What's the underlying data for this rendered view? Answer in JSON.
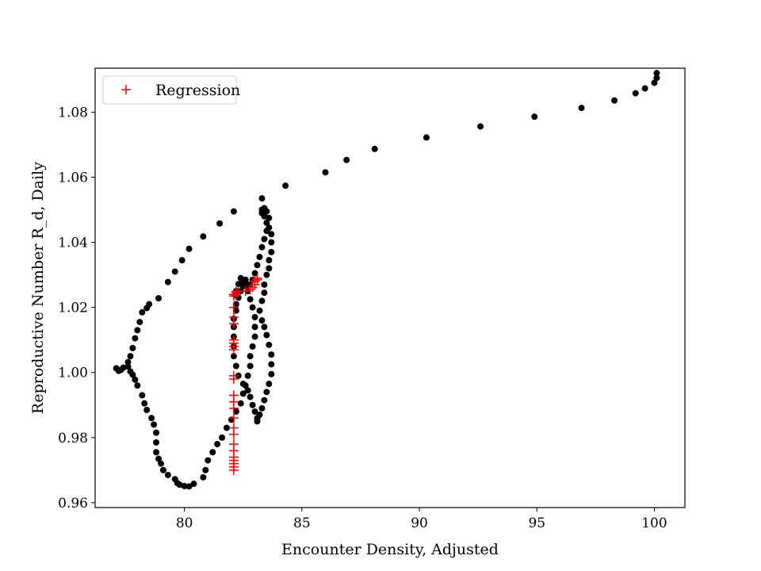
{
  "chart_data": {
    "type": "scatter",
    "title": "",
    "xlabel": "Encounter Density, Adjusted",
    "ylabel": "Reproductive Number R_d, Daily",
    "xlim": [
      76.2,
      101.3
    ],
    "ylim": [
      0.9585,
      1.0935
    ],
    "xticks": [
      80,
      85,
      90,
      95,
      100
    ],
    "xtick_labels": [
      "80",
      "85",
      "90",
      "95",
      "100"
    ],
    "yticks": [
      0.96,
      0.98,
      1.0,
      1.02,
      1.04,
      1.06,
      1.08
    ],
    "ytick_labels": [
      "0.96",
      "0.98",
      "1.00",
      "1.02",
      "1.04",
      "1.06",
      "1.08"
    ],
    "grid": false,
    "legend": {
      "location": "top-left",
      "entries": [
        "Regression"
      ]
    },
    "series": [
      {
        "name": "Data",
        "marker": "dot",
        "color": "#000000",
        "in_legend": false,
        "x": [
          100.1,
          100.1,
          100.0,
          99.6,
          99.2,
          98.3,
          96.9,
          94.9,
          92.6,
          90.3,
          88.1,
          86.9,
          86.0,
          84.3,
          83.3,
          82.1,
          81.5,
          80.8,
          80.2,
          79.9,
          79.6,
          79.3,
          78.9,
          78.5,
          78.4,
          78.2,
          78.1,
          78.0,
          77.9,
          77.8,
          77.7,
          77.6,
          77.4,
          77.3,
          77.2,
          77.1,
          77.6,
          77.7,
          77.8,
          77.9,
          78.0,
          78.2,
          78.3,
          78.4,
          78.6,
          78.7,
          78.8,
          78.8,
          78.8,
          78.9,
          79.0,
          79.1,
          79.3,
          79.6,
          79.7,
          79.8,
          80.0,
          80.2,
          80.4,
          80.8,
          80.9,
          81.0,
          81.2,
          81.4,
          81.6,
          81.8,
          82.0,
          82.2,
          82.4,
          82.5,
          82.6,
          82.7,
          82.8,
          82.8,
          82.9,
          83.0,
          83.0,
          83.0,
          82.9,
          82.8,
          82.7,
          82.6,
          82.6,
          82.6,
          82.5,
          82.5,
          82.4,
          82.3,
          82.2,
          82.2,
          82.1,
          82.1,
          82.1,
          82.1,
          82.1,
          82.2,
          82.3,
          82.5,
          82.7,
          82.8,
          82.9,
          83.0,
          83.1,
          83.1,
          83.1,
          83.2,
          83.3,
          83.4,
          83.5,
          83.6,
          83.7,
          83.7,
          83.7,
          83.6,
          83.5,
          83.4,
          83.3,
          83.2,
          83.3,
          83.4,
          83.4,
          83.5,
          83.6,
          83.6,
          83.7,
          83.7,
          83.7,
          83.6,
          83.5,
          83.4,
          83.3,
          83.3,
          83.4,
          83.5,
          83.6,
          83.5,
          83.4,
          83.3,
          83.2,
          83.1,
          83.0,
          82.9,
          82.8,
          82.7,
          82.6,
          82.4,
          82.3,
          82.2,
          82.2
        ],
        "y": [
          1.092,
          1.0905,
          1.089,
          1.0873,
          1.0858,
          1.0836,
          1.0813,
          1.0786,
          1.0756,
          1.0722,
          1.0687,
          1.0653,
          1.0615,
          1.0574,
          1.0535,
          1.0495,
          1.0458,
          1.0418,
          1.038,
          1.0345,
          1.031,
          1.0278,
          1.0228,
          1.021,
          1.0198,
          1.0185,
          1.0155,
          1.013,
          1.0105,
          1.0075,
          1.005,
          1.0032,
          1.0015,
          1.0008,
          1.0005,
          1.0013,
          1.0018,
          1.0003,
          0.9993,
          0.9978,
          0.996,
          0.993,
          0.9905,
          0.9885,
          0.986,
          0.984,
          0.9815,
          0.9785,
          0.9755,
          0.9735,
          0.972,
          0.97,
          0.9685,
          0.9672,
          0.966,
          0.9655,
          0.9651,
          0.965,
          0.9658,
          0.9678,
          0.97,
          0.973,
          0.9755,
          0.978,
          0.98,
          0.983,
          0.9855,
          0.988,
          0.9905,
          0.9935,
          0.996,
          0.999,
          1.002,
          1.005,
          1.008,
          1.011,
          1.014,
          1.017,
          1.02,
          1.0225,
          1.025,
          1.027,
          1.028,
          1.0285,
          1.0275,
          1.0265,
          1.025,
          1.023,
          1.021,
          1.019,
          1.0165,
          1.014,
          1.011,
          1.008,
          1.005,
          1.002,
          0.999,
          0.9965,
          0.9945,
          0.9925,
          0.99,
          0.988,
          0.986,
          0.985,
          0.9858,
          0.987,
          0.989,
          0.9915,
          0.994,
          0.9965,
          0.9995,
          1.0025,
          1.0055,
          1.0085,
          1.0115,
          1.014,
          1.016,
          1.019,
          1.022,
          1.0245,
          1.027,
          1.03,
          1.032,
          1.0345,
          1.037,
          1.04,
          1.0425,
          1.0445,
          1.046,
          1.048,
          1.049,
          1.05,
          1.0505,
          1.0495,
          1.0475,
          1.0435,
          1.041,
          1.0385,
          1.0355,
          1.033,
          1.0305,
          1.0285,
          1.027,
          1.0268,
          1.0275,
          1.029,
          1.0272,
          1.025,
          1.0237
        ]
      },
      {
        "name": "Regression",
        "marker": "plus",
        "color": "#ff0000",
        "in_legend": true,
        "x": [
          82.1,
          82.1,
          82.1,
          82.1,
          82.1,
          82.1,
          82.1,
          82.1,
          82.1,
          82.1,
          82.1,
          82.1,
          82.1,
          82.1,
          82.1,
          82.1,
          82.1,
          82.1,
          82.1,
          82.1,
          82.1,
          82.1,
          82.1,
          82.1,
          82.2,
          82.2,
          82.2,
          82.3,
          82.6,
          82.8,
          82.9,
          83.0,
          83.0,
          83.1,
          83.1
        ],
        "y": [
          0.97,
          0.971,
          0.972,
          0.973,
          0.974,
          0.976,
          0.978,
          0.981,
          0.983,
          0.986,
          0.989,
          0.991,
          0.993,
          0.998,
          0.999,
          1.007,
          1.008,
          1.009,
          1.01,
          1.015,
          1.017,
          1.02,
          1.0235,
          1.024,
          1.0238,
          1.0245,
          1.0249,
          1.025,
          1.025,
          1.0255,
          1.0262,
          1.027,
          1.028,
          1.0285,
          1.029
        ]
      }
    ]
  }
}
